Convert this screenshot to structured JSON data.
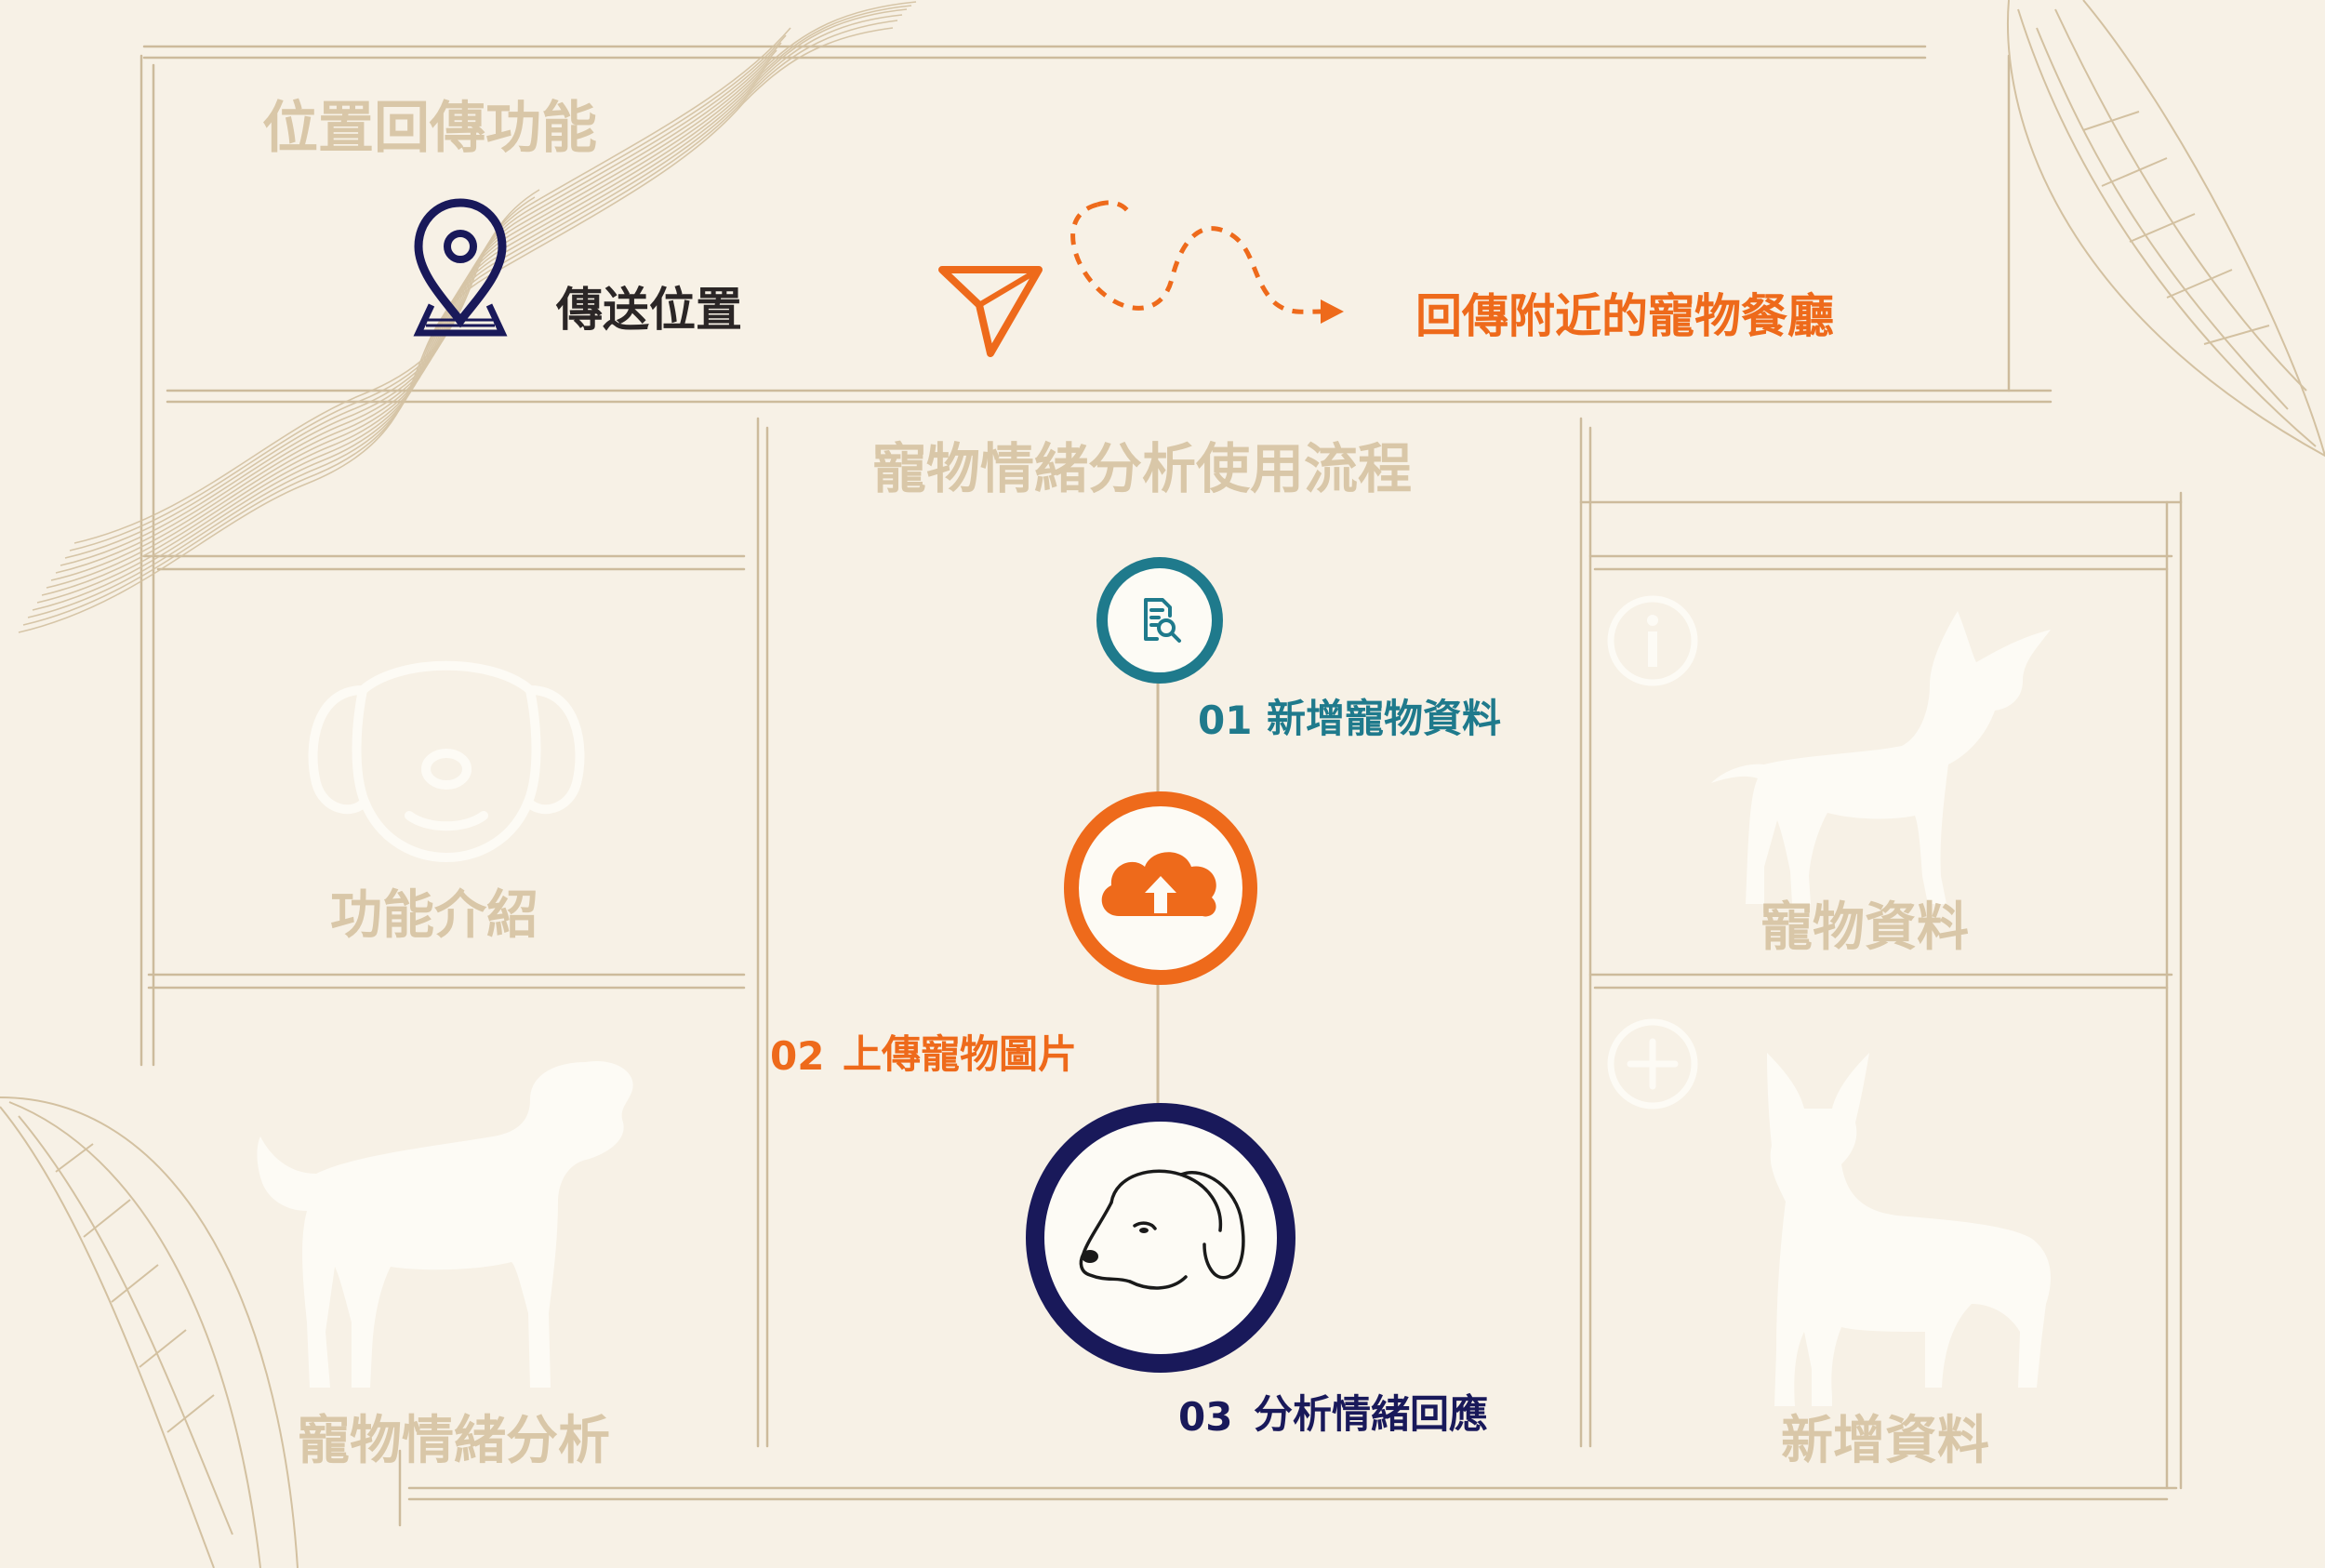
{
  "colors": {
    "background": "#f7f1e6",
    "frame_line": "#cdbb9c",
    "tan_text": "#d9c7a8",
    "navy": "#19195a",
    "orange": "#ee6a1b",
    "teal": "#1f7a8c",
    "white_silhouette": "#fdfbf5"
  },
  "location_section": {
    "title": "位置回傳功能",
    "send_label": "傳送位置",
    "send_icon": "location-pin-icon",
    "arrow_icon": "paper-plane-icon",
    "result_label": "回傳附近的寵物餐廳"
  },
  "flow_section": {
    "title": "寵物情緒分析使用流程",
    "steps": [
      {
        "number": "01",
        "label": "新增寵物資料",
        "icon": "document-search-icon",
        "color": "#1f7a8c"
      },
      {
        "number": "02",
        "label": "上傳寵物圖片",
        "icon": "cloud-upload-icon",
        "color": "#ee6a1b"
      },
      {
        "number": "03",
        "label": "分析情緒回應",
        "icon": "dog-face-icon",
        "color": "#19195a"
      }
    ]
  },
  "nav_panels": {
    "feature_intro": {
      "label": "功能介紹",
      "icon": "dog-face-outline-icon"
    },
    "emotion_analysis": {
      "label": "寵物情緒分析",
      "icon": "dog-silhouette-icon"
    },
    "pet_data": {
      "label": "寵物資料",
      "icon": "info-icon"
    },
    "add_data": {
      "label": "新增資料",
      "icon": "plus-icon"
    }
  }
}
